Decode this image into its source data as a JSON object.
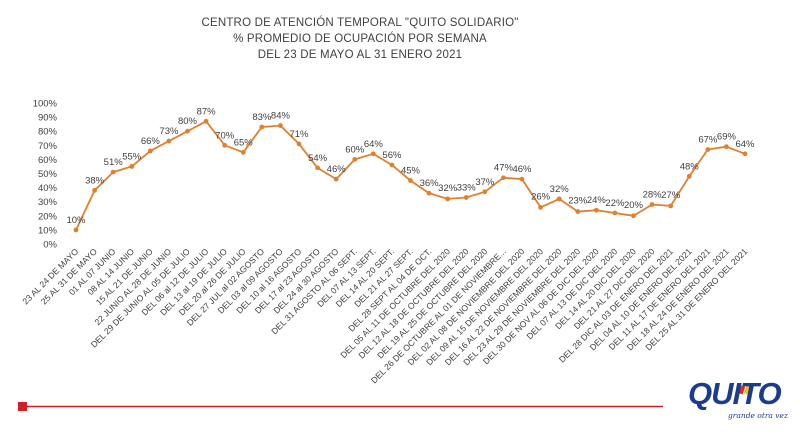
{
  "title_lines": [
    "CENTRO DE ATENCIÓN TEMPORAL \"QUITO SOLIDARIO\"",
    "%  PROMEDIO DE OCUPACIÓN POR SEMANA",
    "DEL 23 DE MAYO AL 31 ENERO 2021"
  ],
  "logo": {
    "text": "QUITO",
    "tagline": "grande otra vez"
  },
  "colors": {
    "line": "#e0802f",
    "red_bar": "#d11f26",
    "blue": "#1b3c8e",
    "grid_text": "#404040"
  },
  "chart_data": {
    "type": "line",
    "title": "CENTRO DE ATENCIÓN TEMPORAL \"QUITO SOLIDARIO\" % PROMEDIO DE OCUPACIÓN POR SEMANA DEL 23 DE MAYO AL 31 ENERO 2021",
    "xlabel": "",
    "ylabel": "",
    "ylim": [
      0,
      100
    ],
    "y_ticks": [
      "0%",
      "10%",
      "20%",
      "30%",
      "40%",
      "50%",
      "60%",
      "70%",
      "80%",
      "90%",
      "100%"
    ],
    "grid": false,
    "categories": [
      "23 AL 24 DE MAYO",
      "25 AL 31 DE MAYO",
      "01 AL 07 JUNIO",
      "08 AL 14 JUNIO",
      "15 AL 21 DE JUNIO",
      "22 JUNIO AL 28 DE JUNIO",
      "DEL 29 DE JUNIO AL 05 DE JULIO",
      "DEL 06 al 12 DE JULIO",
      "DEL 13 al 19 DE JULIO",
      "DEL 20 al 26 DE JULIO",
      "DEL 27 JUL al 02 AGOSTO",
      "DEL 03 al 09 AGOSTO",
      "DEL 10 al 16 AGOSTO",
      "DEL 17 al 23 AGOSTO",
      "DEL 24 al 30 AGOSTO",
      "DEL 31 AGOSTO AL 06 SEPT.",
      "DEL 07 AL 13 SEPT.",
      "DEL 14 AL 20 SEPT.",
      "DEL 21 AL 27 SEPT.",
      "DEL 28 SEPT AL 04 DE OCT.",
      "DEL 05 AL 11 DE OCTUBRE DEL 2020",
      "DEL 12 AL 18 DE OCTUBRE DEL 2020",
      "DEL 19 AL 25 DE OCTUBRE DEL 2020",
      "DEL 26 DE OCTUBRE AL 01 DE NOVIEMBRE...",
      "DEL 02 AL 08 DE NOVIEMBRE DEL 2020",
      "DEL 09 AL 15 DE NOVIEMBRE DEL 2020",
      "DEL 16 AL 22 DE NOVIEMBRE DEL 2020",
      "DEL 23 AL 29 DE NOVIEMBRE DEL 2020",
      "DEL 30 DE NOV AL 06 DE DIC DEL 2020",
      "DEL 07 AL 13 DE DIC DEL 2020",
      "DEL 14 AL 20 DIC DEL 2020",
      "DEL 21 AL 27 DIC DEL 2020",
      "DEL 28 DIC AL 03 DE ENERO DEL 2021",
      "DEL 04 AL 10 DE ENERO DEL 2021",
      "DEL 11 AL 17 DE ENERO DEL 2021",
      "DEL 18 AL 24 DE ENERO DEL 2021",
      "DEL 25 AL 31 DE ENERO DEL 2021"
    ],
    "values": [
      10,
      38,
      51,
      55,
      66,
      73,
      80,
      87,
      70,
      65,
      83,
      84,
      71,
      54,
      46,
      60,
      64,
      56,
      45,
      36,
      32,
      33,
      37,
      47,
      46,
      26,
      32,
      23,
      24,
      22,
      20,
      28,
      27,
      48,
      67,
      69,
      64
    ],
    "value_labels": [
      "10%",
      "38%",
      "51%",
      "55%",
      "66%",
      "73%",
      "80%",
      "87%",
      "70%",
      "65%",
      "83%",
      "84%",
      "71%",
      "54%",
      "46%",
      "60%",
      "64%",
      "56%",
      "45%",
      "36%",
      "32%",
      "33%",
      "37%",
      "47%",
      "46%",
      "26%",
      "32%",
      "23%",
      "24%",
      "22%",
      "20%",
      "28%",
      "27%",
      "48%",
      "67%",
      "69%",
      "64%"
    ]
  }
}
